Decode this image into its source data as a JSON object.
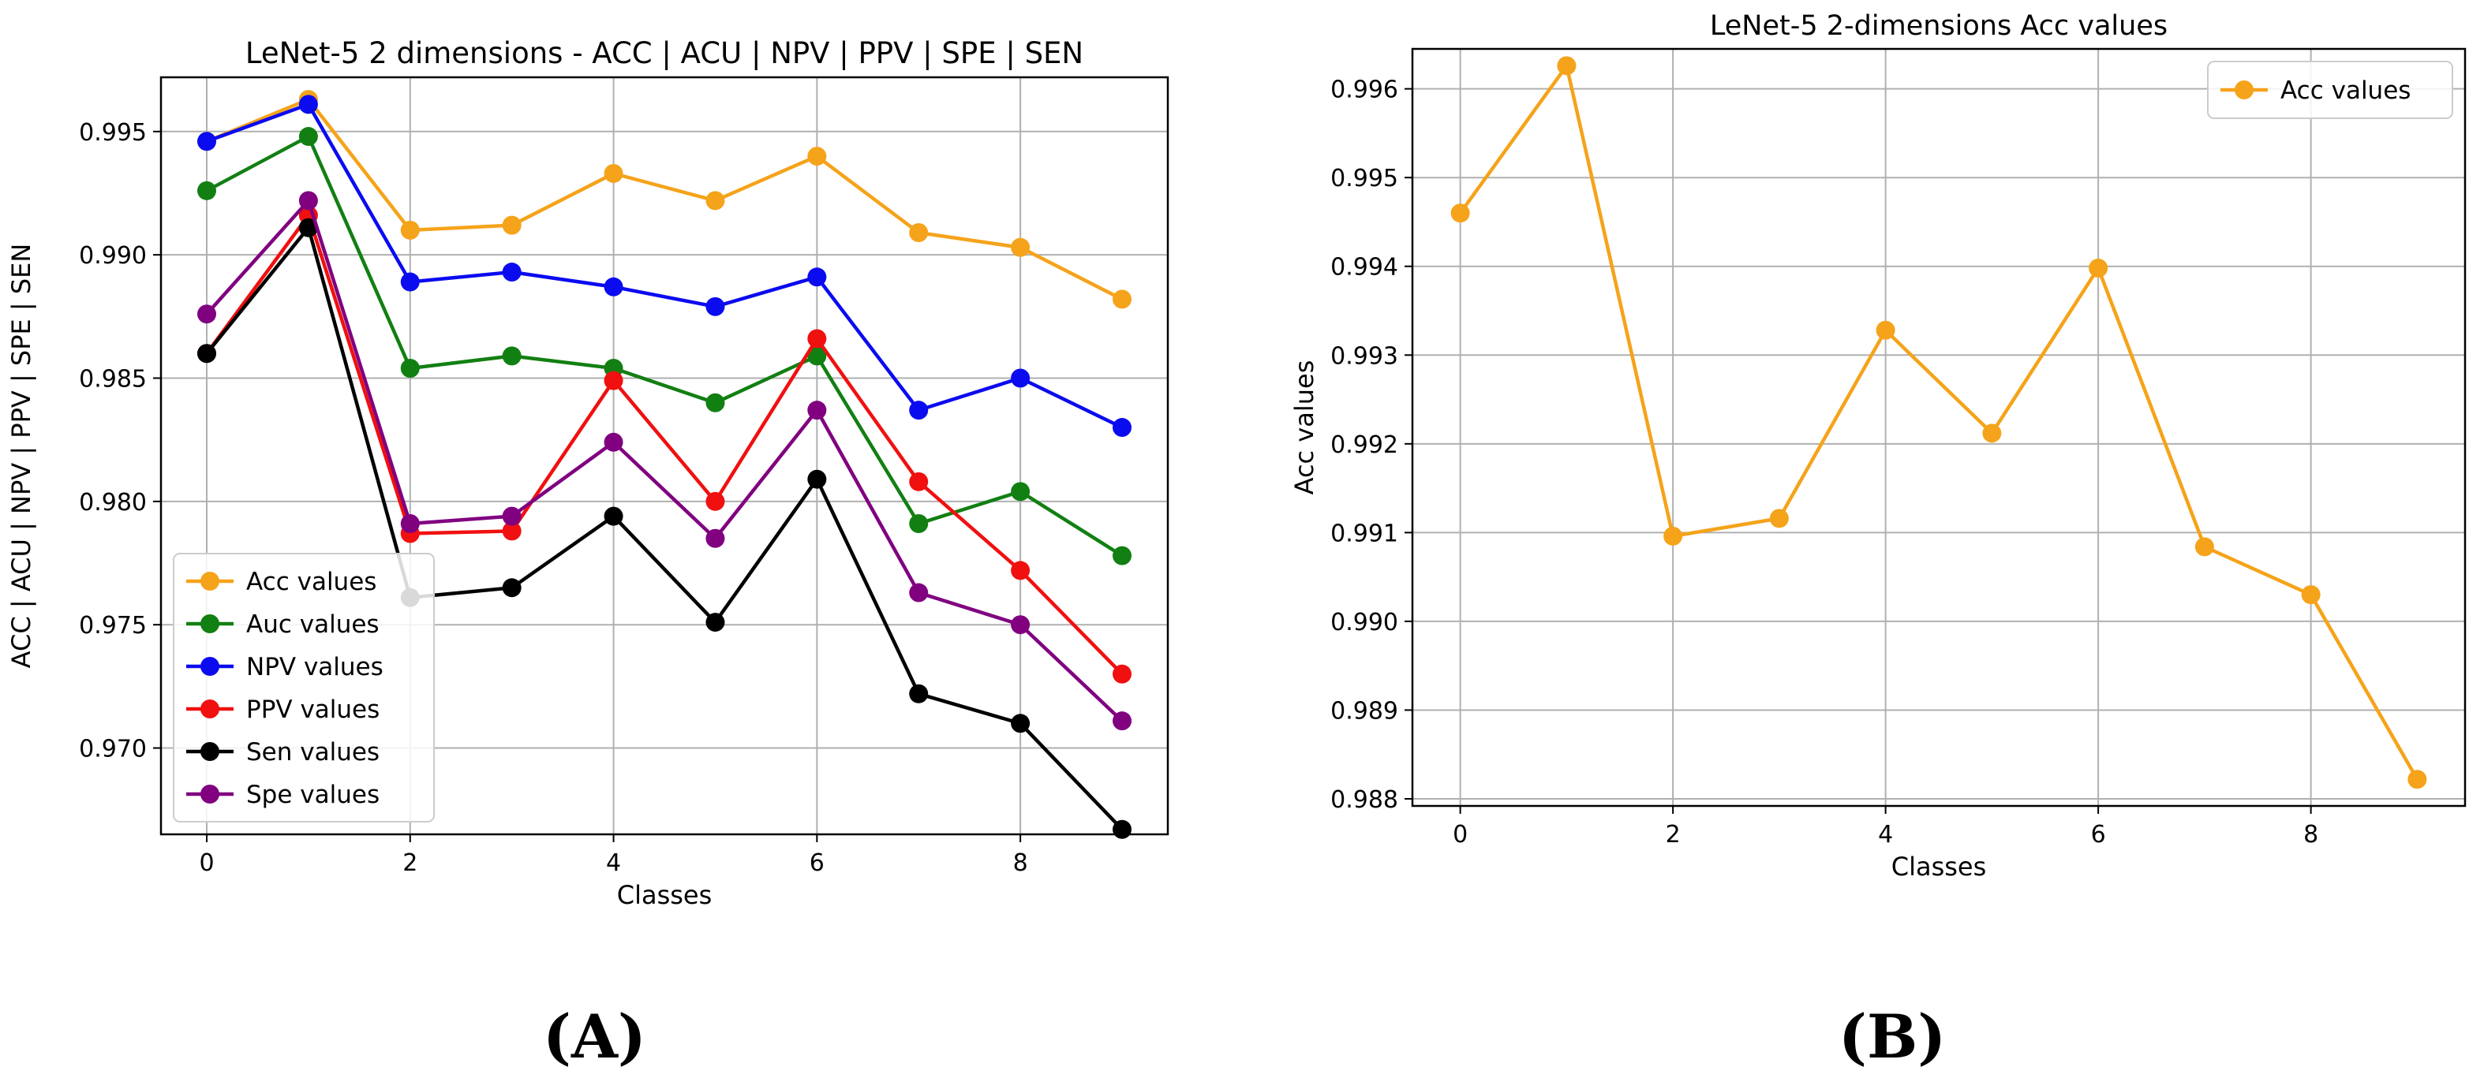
{
  "chart_data": [
    {
      "type": "line",
      "panel_label": "(A)",
      "title": "LeNet-5 2 dimensions - ACC | ACU | NPV | PPV | SPE | SEN",
      "xlabel": "Classes",
      "ylabel": "ACC | ACU | NPV | PPV | SPE | SEN",
      "xlim": [
        -0.45,
        9.45
      ],
      "ylim": [
        0.9665,
        0.9972
      ],
      "xticks": [
        0,
        2,
        4,
        6,
        8
      ],
      "xtick_labels": [
        "0",
        "2",
        "4",
        "6",
        "8"
      ],
      "yticks": [
        0.97,
        0.975,
        0.98,
        0.985,
        0.99,
        0.995
      ],
      "ytick_labels": [
        "0.970",
        "0.975",
        "0.980",
        "0.985",
        "0.990",
        "0.995"
      ],
      "grid": true,
      "legend_position": "lower-left",
      "x": [
        0,
        1,
        2,
        3,
        4,
        5,
        6,
        7,
        8,
        9
      ],
      "series": [
        {
          "name": "Acc values",
          "color": "#f5a31a",
          "values": [
            0.9946,
            0.9963,
            0.991,
            0.9912,
            0.9933,
            0.9922,
            0.994,
            0.9909,
            0.9903,
            0.9882
          ]
        },
        {
          "name": "Auc values",
          "color": "#127f12",
          "values": [
            0.9926,
            0.9948,
            0.9854,
            0.9859,
            0.9854,
            0.984,
            0.9859,
            0.9791,
            0.9804,
            0.9778
          ]
        },
        {
          "name": "NPV values",
          "color": "#0b0bf0",
          "values": [
            0.9946,
            0.9961,
            0.9889,
            0.9893,
            0.9887,
            0.9879,
            0.9891,
            0.9837,
            0.985,
            0.983
          ]
        },
        {
          "name": "PPV values",
          "color": "#f01010",
          "values": [
            0.986,
            0.9916,
            0.9787,
            0.9788,
            0.9849,
            0.98,
            0.9866,
            0.9808,
            0.9772,
            0.973
          ]
        },
        {
          "name": "Sen values",
          "color": "#000000",
          "values": [
            0.986,
            0.9911,
            0.9761,
            0.9765,
            0.9794,
            0.9751,
            0.9809,
            0.9722,
            0.971,
            0.9667
          ]
        },
        {
          "name": "Spe values",
          "color": "#800080",
          "values": [
            0.9876,
            0.9922,
            0.9791,
            0.9794,
            0.9824,
            0.9785,
            0.9837,
            0.9763,
            0.975,
            0.9711
          ]
        }
      ]
    },
    {
      "type": "line",
      "panel_label": "(B)",
      "title": "LeNet-5 2-dimensions Acc values",
      "xlabel": "Classes",
      "ylabel": "Acc values",
      "xlim": [
        -0.45,
        9.45
      ],
      "ylim": [
        0.98792,
        0.99645
      ],
      "xticks": [
        0,
        2,
        4,
        6,
        8
      ],
      "xtick_labels": [
        "0",
        "2",
        "4",
        "6",
        "8"
      ],
      "yticks": [
        0.988,
        0.989,
        0.99,
        0.991,
        0.992,
        0.993,
        0.994,
        0.995,
        0.996
      ],
      "ytick_labels": [
        "0.988",
        "0.989",
        "0.990",
        "0.991",
        "0.992",
        "0.993",
        "0.994",
        "0.995",
        "0.996"
      ],
      "grid": true,
      "legend_position": "top-right",
      "x": [
        0,
        1,
        2,
        3,
        4,
        5,
        6,
        7,
        8,
        9
      ],
      "series": [
        {
          "name": "Acc values",
          "color": "#f5a31a",
          "values": [
            0.9946,
            0.99626,
            0.99096,
            0.99116,
            0.99328,
            0.99212,
            0.99398,
            0.99084,
            0.9903,
            0.98822
          ]
        }
      ]
    }
  ]
}
